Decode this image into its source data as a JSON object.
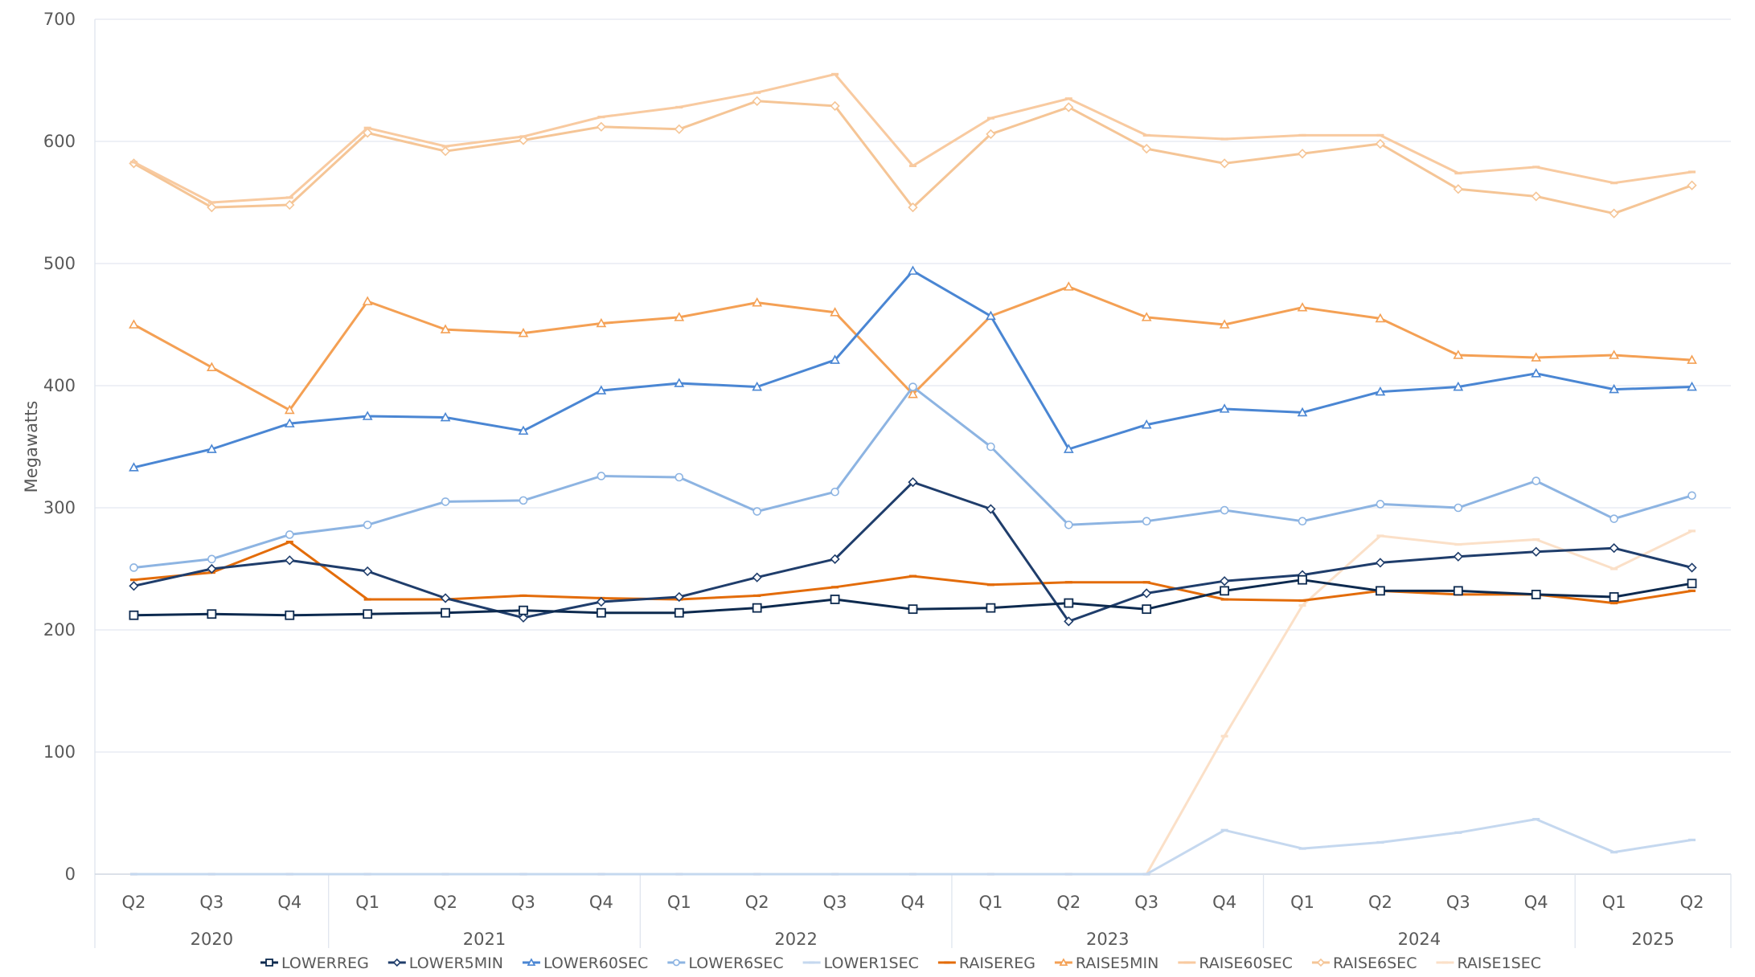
{
  "chart_data": {
    "type": "line",
    "ylabel": "Megawatts",
    "xlabel": "",
    "title": "",
    "ylim": [
      0,
      700
    ],
    "yticks": [
      0,
      100,
      200,
      300,
      400,
      500,
      600,
      700
    ],
    "grid": true,
    "legend_position": "bottom",
    "categories": [
      "Q2",
      "Q3",
      "Q4",
      "Q1",
      "Q2",
      "Q3",
      "Q4",
      "Q1",
      "Q2",
      "Q3",
      "Q4",
      "Q1",
      "Q2",
      "Q3",
      "Q4",
      "Q1",
      "Q2",
      "Q3",
      "Q4",
      "Q1",
      "Q2"
    ],
    "year_groups": [
      {
        "label": "2020",
        "count": 3
      },
      {
        "label": "2021",
        "count": 4
      },
      {
        "label": "2022",
        "count": 4
      },
      {
        "label": "2023",
        "count": 4
      },
      {
        "label": "2024",
        "count": 4
      },
      {
        "label": "2025",
        "count": 2
      }
    ],
    "series": [
      {
        "name": "LOWERREG",
        "color": "#0d2a4f",
        "marker": "square",
        "values": [
          212,
          213,
          212,
          213,
          214,
          216,
          214,
          214,
          218,
          225,
          217,
          218,
          222,
          217,
          232,
          241,
          232,
          232,
          229,
          227,
          238
        ]
      },
      {
        "name": "LOWER5MIN",
        "color": "#1f3d6b",
        "marker": "diamond",
        "values": [
          236,
          250,
          257,
          248,
          226,
          210,
          223,
          227,
          243,
          258,
          321,
          299,
          207,
          230,
          240,
          245,
          255,
          260,
          264,
          267,
          251
        ]
      },
      {
        "name": "LOWER60SEC",
        "color": "#4a86d3",
        "marker": "triangle",
        "values": [
          333,
          348,
          369,
          375,
          374,
          363,
          396,
          402,
          399,
          421,
          494,
          457,
          348,
          368,
          381,
          378,
          395,
          399,
          410,
          397,
          399
        ]
      },
      {
        "name": "LOWER6SEC",
        "color": "#8db4e2",
        "marker": "circle",
        "values": [
          251,
          258,
          278,
          286,
          305,
          306,
          326,
          325,
          297,
          313,
          399,
          350,
          286,
          289,
          298,
          289,
          303,
          300,
          322,
          291,
          310
        ]
      },
      {
        "name": "LOWER1SEC",
        "color": "#c5d8ef",
        "marker": "dash",
        "values": [
          0,
          0,
          0,
          0,
          0,
          0,
          0,
          0,
          0,
          0,
          0,
          0,
          0,
          0,
          36,
          21,
          26,
          34,
          45,
          18,
          28
        ]
      },
      {
        "name": "RAISEREG",
        "color": "#e36c0a",
        "marker": "dash",
        "values": [
          241,
          247,
          272,
          225,
          225,
          228,
          226,
          225,
          228,
          235,
          244,
          237,
          239,
          239,
          225,
          224,
          232,
          229,
          229,
          222,
          232
        ]
      },
      {
        "name": "RAISE5MIN",
        "color": "#f4a054",
        "marker": "triangle",
        "values": [
          450,
          415,
          380,
          469,
          446,
          443,
          451,
          456,
          468,
          460,
          393,
          457,
          481,
          456,
          450,
          464,
          455,
          425,
          423,
          425,
          421
        ]
      },
      {
        "name": "RAISE60SEC",
        "color": "#f8caa0",
        "marker": "dash",
        "values": [
          583,
          550,
          554,
          611,
          596,
          604,
          620,
          628,
          640,
          655,
          580,
          619,
          635,
          605,
          602,
          605,
          605,
          574,
          579,
          566,
          575
        ]
      },
      {
        "name": "RAISE6SEC",
        "color": "#f5c596",
        "marker": "diamond",
        "values": [
          582,
          546,
          548,
          607,
          592,
          601,
          612,
          610,
          633,
          629,
          546,
          606,
          628,
          594,
          582,
          590,
          598,
          561,
          555,
          541,
          564
        ]
      },
      {
        "name": "RAISE1SEC",
        "color": "#fbe0c8",
        "marker": "dash",
        "values": [
          0,
          0,
          0,
          0,
          0,
          0,
          0,
          0,
          0,
          0,
          0,
          0,
          0,
          0,
          113,
          220,
          277,
          270,
          274,
          250,
          281
        ]
      }
    ]
  }
}
